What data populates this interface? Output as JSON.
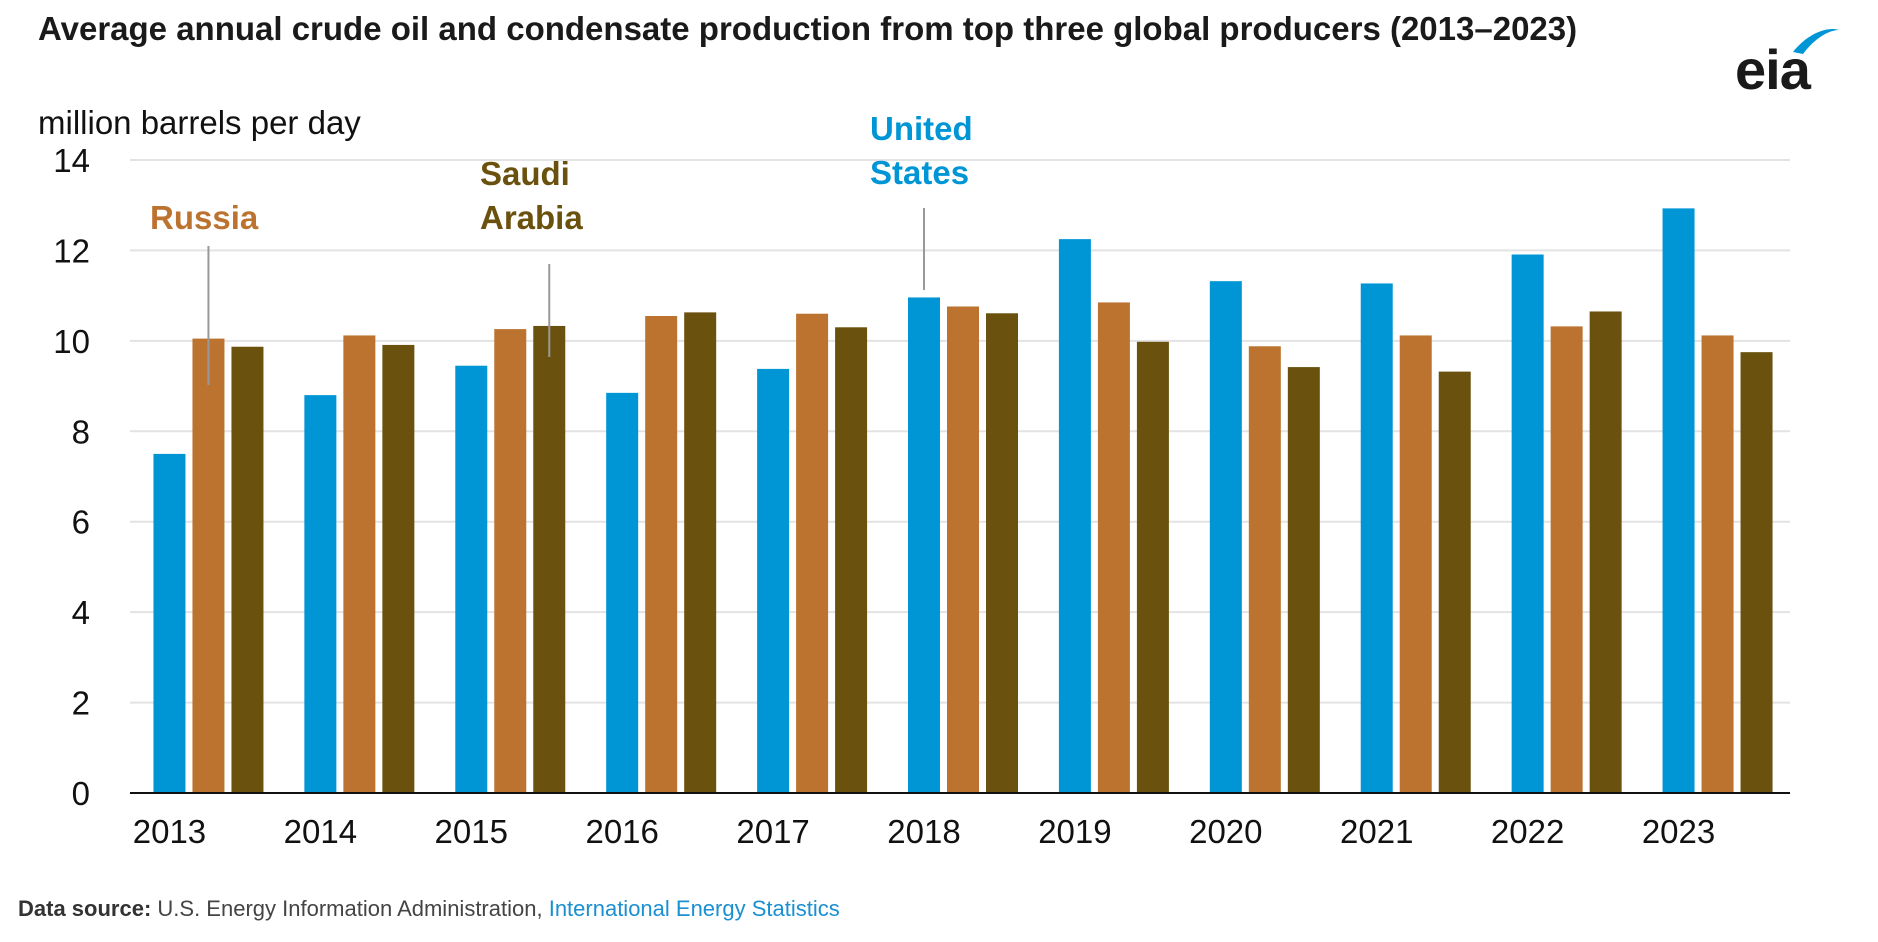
{
  "header": {
    "title": "Average annual crude oil and condensate production from top three global producers (2013–2023)",
    "unit": "million barrels per day"
  },
  "logo": {
    "text": "eia",
    "color": "#0096d6"
  },
  "source": {
    "label": "Data source:",
    "text": "U.S. Energy Information Administration,",
    "link": "International Energy Statistics"
  },
  "chart_data": {
    "type": "bar",
    "title": "Average annual crude oil and condensate production from top three global producers (2013–2023)",
    "ylabel": "million barrels per day",
    "xlabel": "",
    "ylim": [
      0,
      14
    ],
    "yticks": [
      0,
      2,
      4,
      6,
      8,
      10,
      12,
      14
    ],
    "categories": [
      "2013",
      "2014",
      "2015",
      "2016",
      "2017",
      "2018",
      "2019",
      "2020",
      "2021",
      "2022",
      "2023"
    ],
    "series": [
      {
        "name": "United States",
        "color": "#0096d6",
        "values": [
          7.5,
          8.8,
          9.45,
          8.85,
          9.38,
          10.96,
          12.25,
          11.32,
          11.27,
          11.91,
          12.93
        ]
      },
      {
        "name": "Russia",
        "color": "#bc7330",
        "values": [
          10.05,
          10.12,
          10.26,
          10.55,
          10.6,
          10.76,
          10.85,
          9.88,
          10.12,
          10.32,
          10.12
        ]
      },
      {
        "name": "Saudi Arabia",
        "color": "#6a520e",
        "values": [
          9.87,
          9.91,
          10.33,
          10.63,
          10.3,
          10.61,
          9.98,
          9.42,
          9.32,
          10.65,
          9.75
        ]
      }
    ],
    "annotations": [
      {
        "series": 1,
        "lines": [
          "Russia"
        ],
        "color": "#bc7330"
      },
      {
        "series": 2,
        "lines": [
          "Saudi",
          "Arabia"
        ],
        "color": "#6a520e"
      },
      {
        "series": 0,
        "lines": [
          "United",
          "States"
        ],
        "color": "#0096d6"
      }
    ],
    "grid": true
  }
}
